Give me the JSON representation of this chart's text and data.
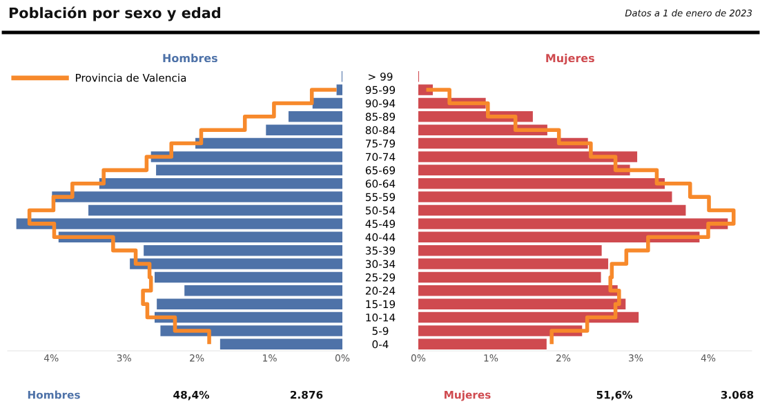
{
  "chart_data": [
    {
      "type": "bar",
      "orientation": "horizontal",
      "title": "Hombres",
      "categories": [
        "> 99",
        "95-99",
        "90-94",
        "85-89",
        "80-84",
        "75-79",
        "70-74",
        "65-69",
        "60-64",
        "55-59",
        "50-54",
        "45-49",
        "40-44",
        "35-39",
        "30-34",
        "25-29",
        "20-24",
        "15-19",
        "10-14",
        "5-9",
        "0-4"
      ],
      "series": [
        {
          "type": "bar",
          "color": "#4e72a8",
          "values": [
            0.01,
            0.08,
            0.41,
            0.74,
            1.05,
            2.02,
            2.63,
            2.56,
            3.34,
            3.99,
            3.49,
            4.48,
            3.9,
            2.73,
            2.92,
            2.58,
            2.17,
            2.55,
            2.58,
            2.5,
            1.68
          ]
        },
        {
          "type": "step",
          "name": "Provincia de Valencia",
          "color": "#f7892b",
          "values": [
            null,
            0.08,
            0.42,
            0.94,
            1.34,
            1.94,
            2.35,
            2.69,
            3.28,
            3.71,
            3.97,
            4.3,
            3.96,
            3.15,
            2.84,
            2.65,
            2.63,
            2.74,
            2.68,
            2.3,
            1.83
          ]
        }
      ],
      "xlim": [
        4.6,
        0
      ],
      "xticks": [
        {
          "value": 4,
          "label": "4%"
        },
        {
          "value": 3,
          "label": "3%"
        },
        {
          "value": 2,
          "label": "2%"
        },
        {
          "value": 1,
          "label": "1%"
        },
        {
          "value": 0,
          "label": "0%"
        }
      ],
      "legend": "top left",
      "grid": false,
      "annotations": [
        "Población por sexo y edad",
        "Datos a 1 de enero de 2023",
        "Hombres",
        "48,4%",
        "2.876"
      ]
    },
    {
      "type": "bar",
      "orientation": "horizontal",
      "title": "Mujeres",
      "categories": [
        null,
        null,
        null,
        null,
        null,
        null,
        null,
        null,
        null,
        null,
        null,
        null,
        null,
        null,
        null,
        null,
        null,
        null,
        null,
        null,
        null
      ],
      "series": [
        {
          "type": "bar",
          "color": "#cf4a4f",
          "values": [
            0.01,
            0.2,
            0.93,
            1.58,
            1.78,
            2.34,
            3.02,
            2.92,
            3.4,
            3.5,
            3.69,
            4.27,
            3.88,
            2.53,
            2.62,
            2.52,
            2.75,
            2.86,
            3.04,
            2.26,
            1.77
          ]
        },
        {
          "type": "step",
          "color": "#f7892b",
          "values": [
            null,
            0.11,
            0.43,
            0.96,
            1.34,
            1.94,
            2.38,
            2.72,
            3.29,
            3.75,
            4.01,
            4.35,
            4.0,
            3.17,
            2.87,
            2.67,
            2.65,
            2.77,
            2.72,
            2.33,
            1.84
          ]
        }
      ],
      "xlim": [
        0,
        4.6
      ],
      "xticks": [
        {
          "value": 0,
          "label": "0%"
        },
        {
          "value": 1,
          "label": "1%"
        },
        {
          "value": 2,
          "label": "2%"
        },
        {
          "value": 3,
          "label": "3%"
        },
        {
          "value": 4,
          "label": "4%"
        }
      ],
      "tick_labels": "x",
      "grid": false,
      "annotations": [
        "Mujeres",
        "51,6%",
        "3.068"
      ]
    }
  ]
}
